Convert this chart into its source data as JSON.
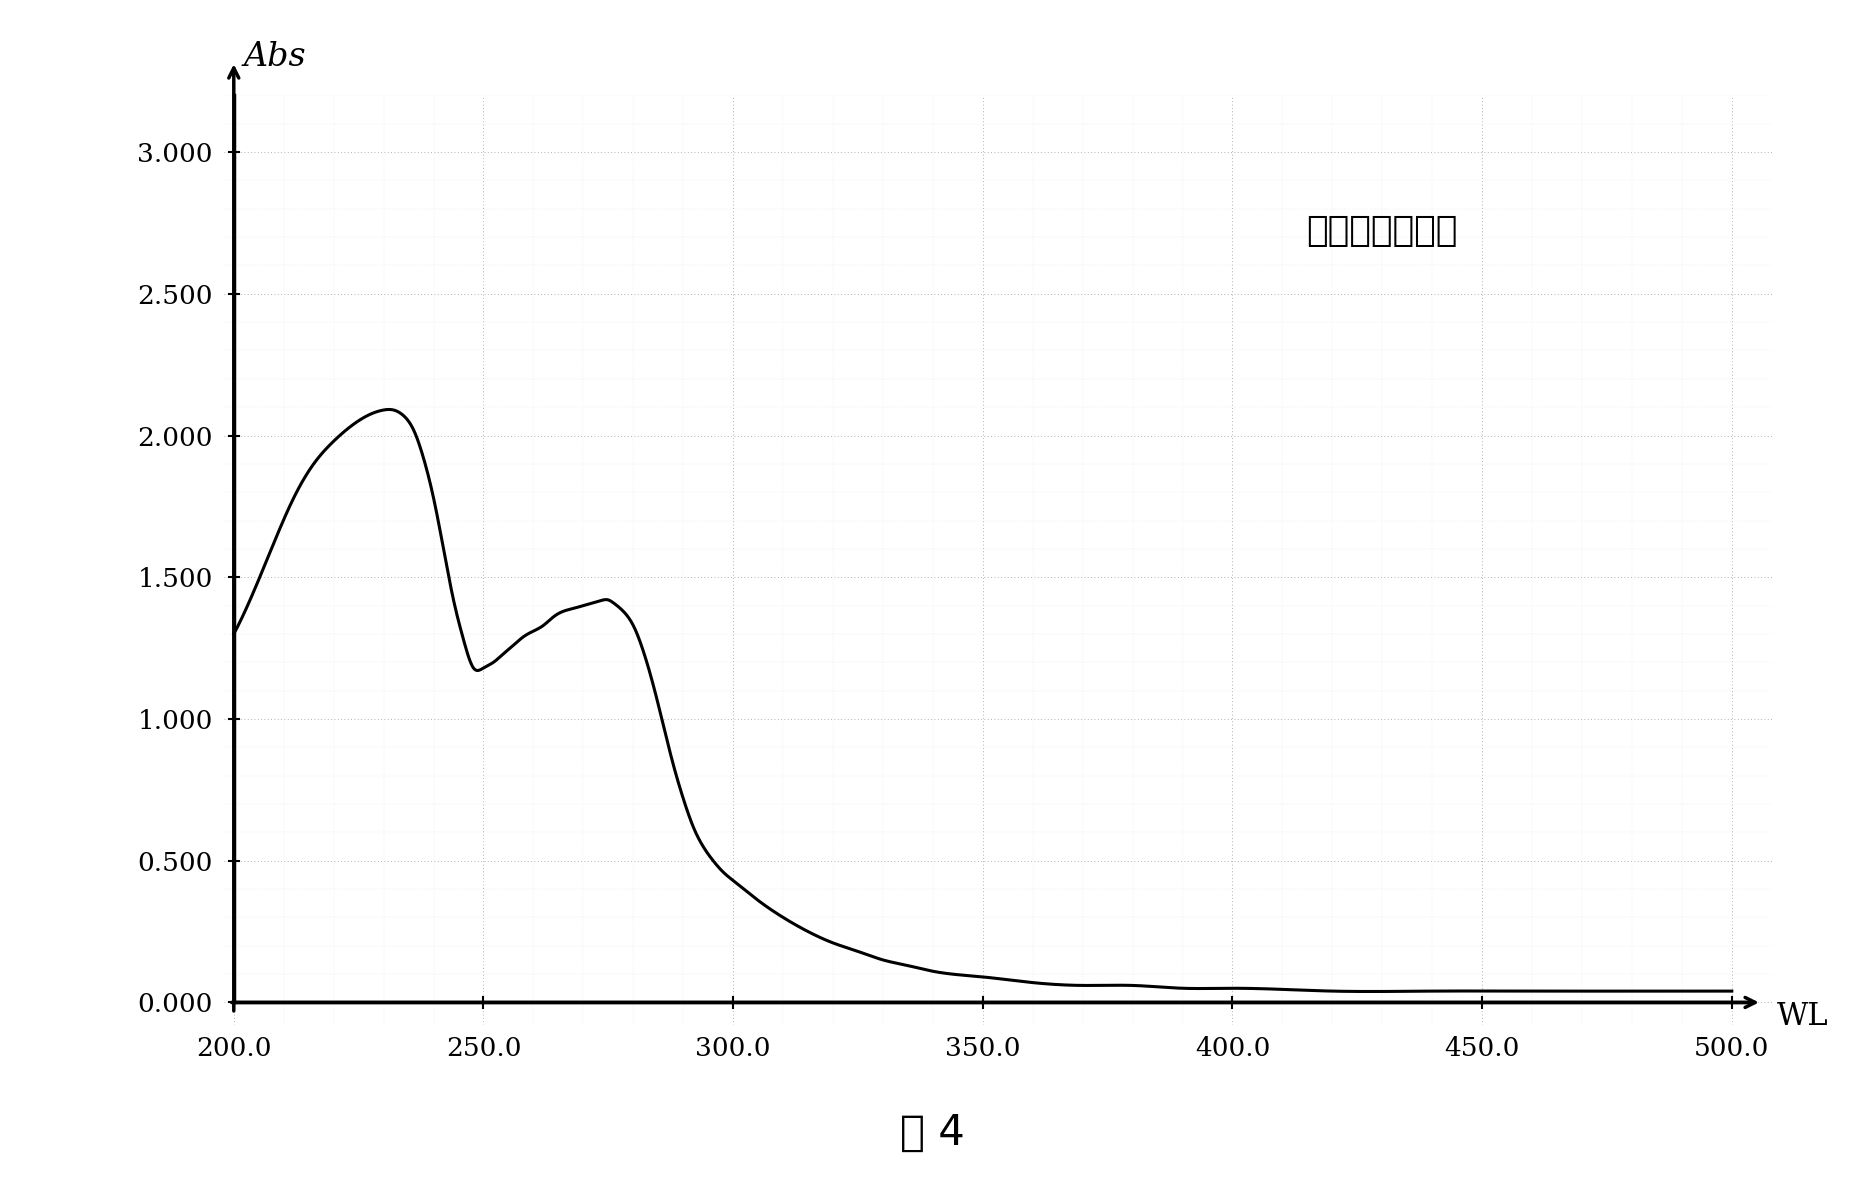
{
  "title_annotation": "抗原紫外吸收图",
  "xlabel": "WL",
  "ylabel": "Abs",
  "caption": "图 4",
  "xlim": [
    200.0,
    500.0
  ],
  "ylim": [
    0.0,
    3.2
  ],
  "xticks": [
    200.0,
    250.0,
    300.0,
    350.0,
    400.0,
    450.0,
    500.0
  ],
  "yticks": [
    0.0,
    0.5,
    1.0,
    1.5,
    2.0,
    2.5,
    3.0
  ],
  "line_color": "#000000",
  "background_color": "#ffffff",
  "grid_color": "#bbbbbb",
  "annotation_fontsize": 26,
  "axis_label_fontsize": 22,
  "tick_fontsize": 19,
  "caption_fontsize": 30,
  "curve_x": [
    200,
    204,
    208,
    212,
    216,
    220,
    224,
    228,
    230,
    232,
    234,
    236,
    238,
    240,
    242,
    244,
    246,
    248,
    250,
    252,
    254,
    256,
    258,
    260,
    262,
    264,
    266,
    268,
    270,
    272,
    274,
    275,
    276,
    278,
    280,
    282,
    284,
    286,
    288,
    290,
    292,
    294,
    296,
    298,
    300,
    305,
    310,
    315,
    320,
    325,
    330,
    335,
    340,
    350,
    360,
    370,
    380,
    390,
    400,
    420,
    440,
    460,
    480,
    500
  ],
  "curve_y": [
    1.3,
    1.45,
    1.62,
    1.78,
    1.9,
    1.98,
    2.04,
    2.08,
    2.09,
    2.09,
    2.07,
    2.02,
    1.92,
    1.78,
    1.6,
    1.42,
    1.28,
    1.18,
    1.18,
    1.2,
    1.23,
    1.26,
    1.29,
    1.31,
    1.33,
    1.36,
    1.38,
    1.39,
    1.4,
    1.41,
    1.42,
    1.42,
    1.41,
    1.38,
    1.33,
    1.24,
    1.12,
    0.98,
    0.84,
    0.72,
    0.62,
    0.55,
    0.5,
    0.46,
    0.43,
    0.36,
    0.3,
    0.25,
    0.21,
    0.18,
    0.15,
    0.13,
    0.11,
    0.09,
    0.07,
    0.06,
    0.06,
    0.05,
    0.05,
    0.04,
    0.04,
    0.04,
    0.04,
    0.04
  ]
}
